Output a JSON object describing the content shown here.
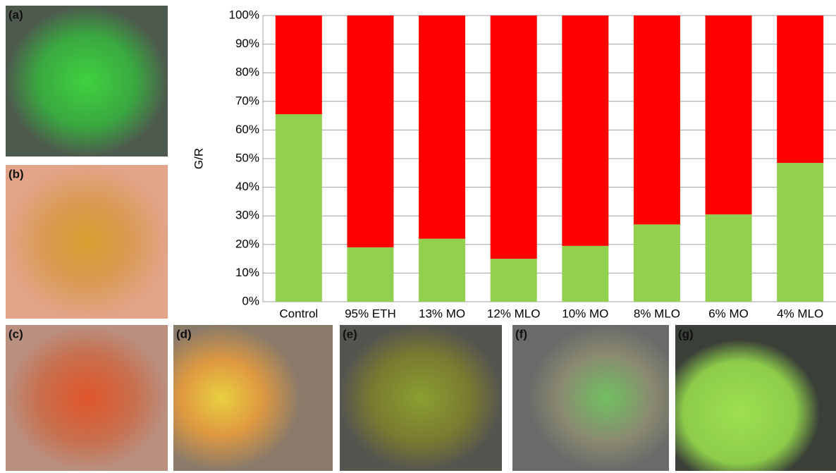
{
  "chart_data": {
    "type": "stacked-bar",
    "y_label": "G/R",
    "categories": [
      "Control",
      "95% ETH",
      "13% MO",
      "12% MLO",
      "10% MO",
      "8% MLO",
      "6% MO",
      "4% MLO"
    ],
    "series": [
      {
        "color": "#92d050",
        "values": [
          65.5,
          19,
          22,
          15,
          19.5,
          27,
          30.5,
          48.5
        ]
      },
      {
        "color": "#ff0000",
        "values": [
          34.5,
          81,
          78,
          85,
          80.5,
          73,
          69.5,
          51.5
        ]
      }
    ],
    "ylim": [
      0,
      100
    ],
    "yticks": [
      {
        "value": 0,
        "label": "0%"
      },
      {
        "value": 10,
        "label": "10%"
      },
      {
        "value": 20,
        "label": "20%"
      },
      {
        "value": 30,
        "label": "30%"
      },
      {
        "value": 40,
        "label": "40%"
      },
      {
        "value": 50,
        "label": "50%"
      },
      {
        "value": 60,
        "label": "60%"
      },
      {
        "value": 70,
        "label": "70%"
      },
      {
        "value": 80,
        "label": "80%"
      },
      {
        "value": 90,
        "label": "90%"
      },
      {
        "value": 100,
        "label": "100%"
      }
    ],
    "grid": true
  },
  "panels": [
    {
      "label": "(a)"
    },
    {
      "label": "(b)"
    },
    {
      "label": "(c)"
    },
    {
      "label": "(d)"
    },
    {
      "label": "(e)"
    },
    {
      "label": "(f)"
    },
    {
      "label": "(g)"
    }
  ]
}
